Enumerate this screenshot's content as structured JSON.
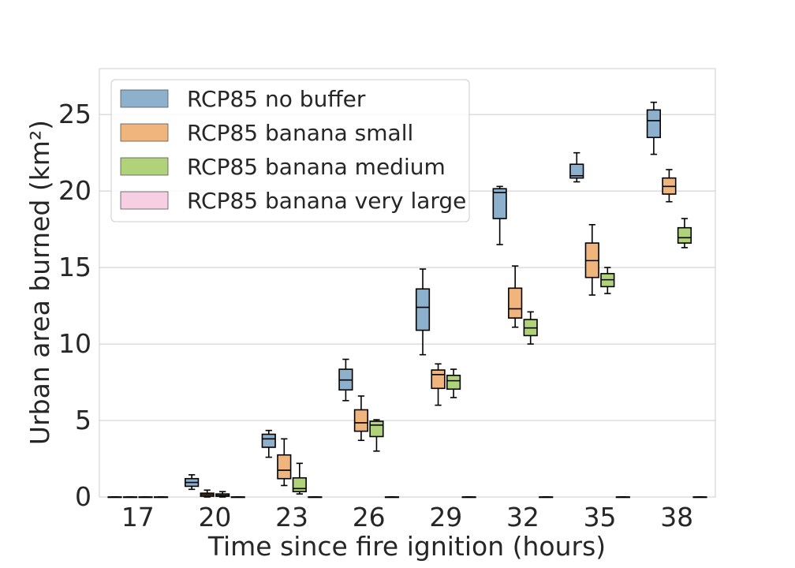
{
  "chart_data": {
    "type": "box",
    "xlabel": "Time since fire ignition (hours)",
    "ylabel": "Urban area burned (km²)",
    "ylim": [
      0,
      28
    ],
    "yticks": [
      0,
      5,
      10,
      15,
      20,
      25
    ],
    "grid": "horizontal",
    "legend_position": "top-left",
    "categories": [
      "17",
      "20",
      "23",
      "26",
      "29",
      "32",
      "35",
      "38"
    ],
    "series": [
      {
        "name": "RCP85 no buffer",
        "color": "#8db0cc",
        "boxes": [
          {
            "min": 0,
            "q1": 0,
            "median": 0,
            "q3": 0,
            "max": 0
          },
          {
            "min": 0.5,
            "q1": 0.7,
            "median": 0.95,
            "q3": 1.2,
            "max": 1.45
          },
          {
            "min": 2.6,
            "q1": 3.25,
            "median": 3.8,
            "q3": 4.1,
            "max": 4.35
          },
          {
            "min": 6.3,
            "q1": 7.0,
            "median": 7.65,
            "q3": 8.35,
            "max": 9.0
          },
          {
            "min": 9.3,
            "q1": 10.9,
            "median": 12.4,
            "q3": 13.6,
            "max": 14.9
          },
          {
            "min": 16.5,
            "q1": 18.2,
            "median": 19.9,
            "q3": 20.15,
            "max": 20.3
          },
          {
            "min": 20.6,
            "q1": 20.85,
            "median": 21.0,
            "q3": 21.75,
            "max": 22.5
          },
          {
            "min": 22.4,
            "q1": 23.5,
            "median": 24.6,
            "q3": 25.3,
            "max": 25.8
          }
        ]
      },
      {
        "name": "RCP85 banana small",
        "color": "#f0b57c",
        "boxes": [
          {
            "min": 0,
            "q1": 0,
            "median": 0,
            "q3": 0,
            "max": 0
          },
          {
            "min": 0,
            "q1": 0.05,
            "median": 0.15,
            "q3": 0.25,
            "max": 0.45
          },
          {
            "min": 0.75,
            "q1": 1.2,
            "median": 1.75,
            "q3": 2.75,
            "max": 3.8
          },
          {
            "min": 3.7,
            "q1": 4.3,
            "median": 4.85,
            "q3": 5.7,
            "max": 6.6
          },
          {
            "min": 6.0,
            "q1": 7.1,
            "median": 8.0,
            "q3": 8.3,
            "max": 8.7
          },
          {
            "min": 11.1,
            "q1": 11.7,
            "median": 12.3,
            "q3": 13.65,
            "max": 15.1
          },
          {
            "min": 13.2,
            "q1": 14.35,
            "median": 15.45,
            "q3": 16.6,
            "max": 17.8
          },
          {
            "min": 19.3,
            "q1": 19.8,
            "median": 20.3,
            "q3": 20.85,
            "max": 21.4
          }
        ]
      },
      {
        "name": "RCP85 banana medium",
        "color": "#b0d37a",
        "boxes": [
          {
            "min": 0,
            "q1": 0,
            "median": 0,
            "q3": 0,
            "max": 0
          },
          {
            "min": 0,
            "q1": 0.05,
            "median": 0.1,
            "q3": 0.2,
            "max": 0.35
          },
          {
            "min": 0.2,
            "q1": 0.35,
            "median": 0.55,
            "q3": 1.25,
            "max": 2.2
          },
          {
            "min": 3.0,
            "q1": 3.95,
            "median": 4.7,
            "q3": 4.95,
            "max": 5.05
          },
          {
            "min": 6.5,
            "q1": 7.05,
            "median": 7.6,
            "q3": 7.95,
            "max": 8.35
          },
          {
            "min": 10.0,
            "q1": 10.55,
            "median": 11.05,
            "q3": 11.6,
            "max": 12.1
          },
          {
            "min": 13.3,
            "q1": 13.75,
            "median": 14.2,
            "q3": 14.6,
            "max": 15.0
          },
          {
            "min": 16.3,
            "q1": 16.6,
            "median": 16.95,
            "q3": 17.6,
            "max": 18.2
          }
        ]
      },
      {
        "name": "RCP85 banana very large",
        "color": "#f6cfe3",
        "boxes": [
          {
            "min": 0,
            "q1": 0,
            "median": 0,
            "q3": 0,
            "max": 0
          },
          {
            "min": 0,
            "q1": 0,
            "median": 0,
            "q3": 0,
            "max": 0
          },
          {
            "min": 0,
            "q1": 0,
            "median": 0,
            "q3": 0,
            "max": 0
          },
          {
            "min": 0,
            "q1": 0,
            "median": 0,
            "q3": 0,
            "max": 0
          },
          {
            "min": 0,
            "q1": 0,
            "median": 0,
            "q3": 0,
            "max": 0
          },
          {
            "min": 0,
            "q1": 0,
            "median": 0,
            "q3": 0,
            "max": 0
          },
          {
            "min": 0,
            "q1": 0,
            "median": 0,
            "q3": 0,
            "max": 0
          },
          {
            "min": 0,
            "q1": 0,
            "median": 0,
            "q3": 0,
            "max": 0
          }
        ]
      }
    ]
  }
}
